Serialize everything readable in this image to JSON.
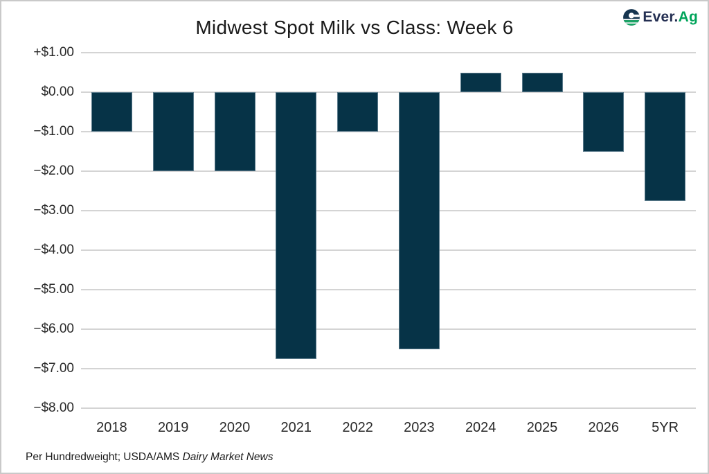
{
  "header": {
    "title": "Midwest Spot Milk vs Class: Week 6"
  },
  "logo": {
    "icon": "ever-ag-e-icon",
    "text_primary": "Ever.",
    "text_secondary": "Ag",
    "navy": "#242f52",
    "green": "#00a45a"
  },
  "footer": {
    "prefix": "Per Hundredweight; USDA/AMS ",
    "source_italic": "Dairy Market News"
  },
  "chart_data": {
    "type": "bar",
    "title": "Midwest Spot Milk vs Class: Week 6",
    "categories": [
      "2018",
      "2019",
      "2020",
      "2021",
      "2022",
      "2023",
      "2024",
      "2025",
      "2026",
      "5YR"
    ],
    "values": [
      -1.0,
      -2.0,
      -2.0,
      -6.75,
      -1.0,
      -6.5,
      0.5,
      0.5,
      -1.5,
      -2.75
    ],
    "xlabel": "",
    "ylabel": "",
    "unit": "USD per hundredweight",
    "ylim": [
      -8.0,
      1.0
    ],
    "ytick_step": 1.0,
    "ytick_labels": [
      "+$1.00",
      "$0.00",
      "−$1.00",
      "−$2.00",
      "−$3.00",
      "−$4.00",
      "−$5.00",
      "−$6.00",
      "−$7.00",
      "−$8.00"
    ],
    "grid": true,
    "legend": "none",
    "bar_color": "#063347",
    "gridline_color": "#d4d4d4"
  }
}
